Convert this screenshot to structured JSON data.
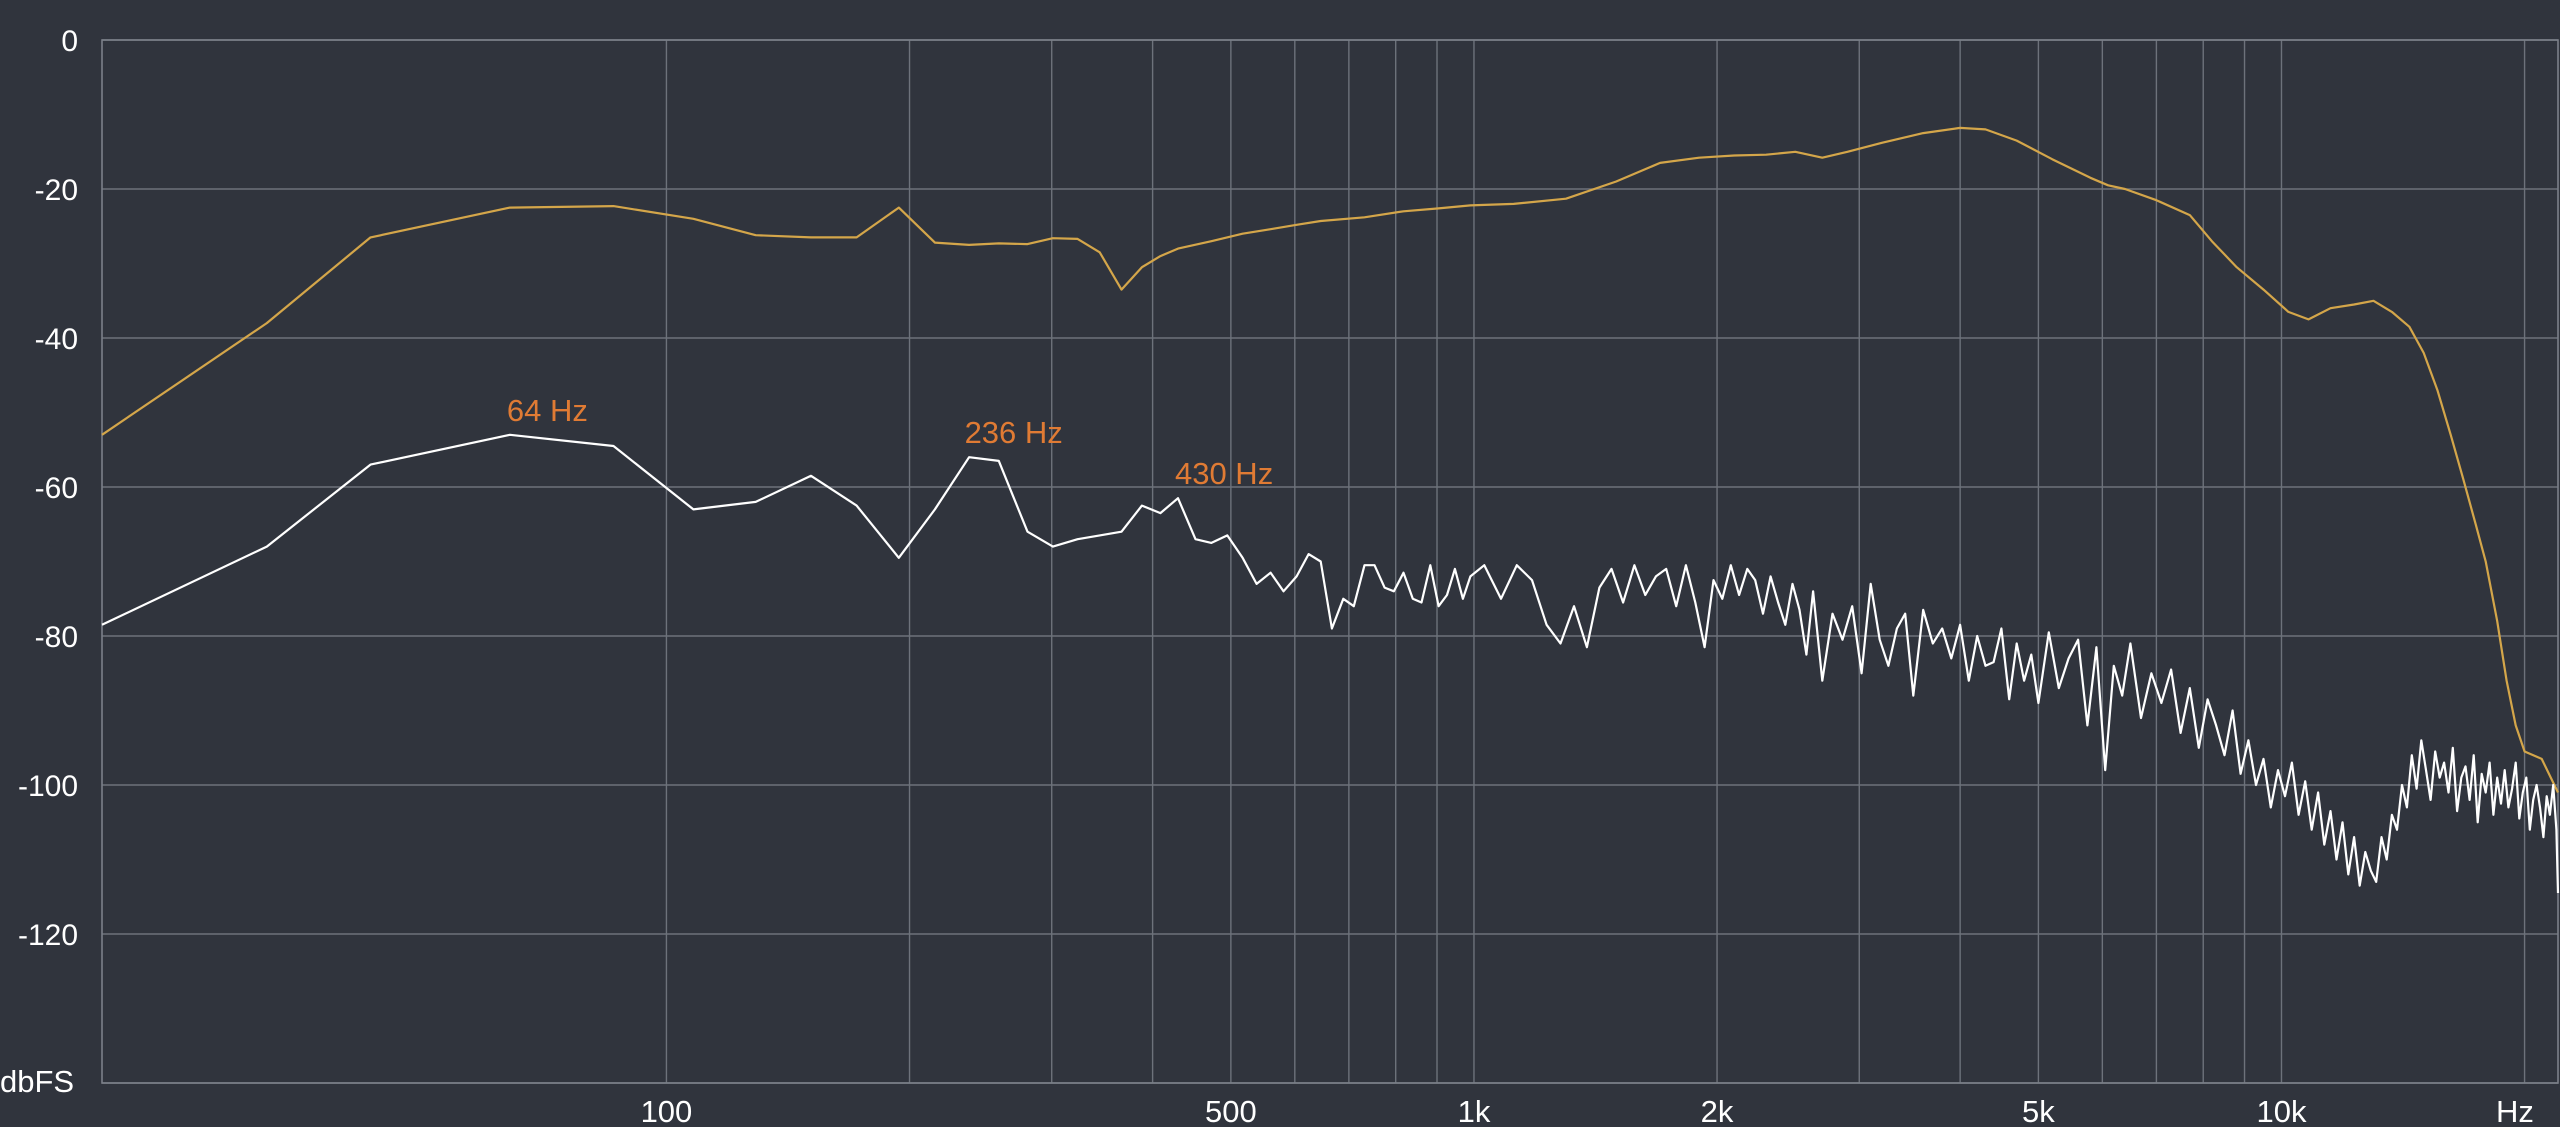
{
  "chart_data": {
    "type": "line",
    "title": "",
    "xlabel": "Hz",
    "ylabel": "dbFS",
    "x_scale": "log",
    "xlim": [
      20,
      22000
    ],
    "ylim": [
      -140,
      0
    ],
    "grid": true,
    "y_ticks": [
      0,
      -20,
      -40,
      -60,
      -80,
      -100,
      -120
    ],
    "y_tick_labels": [
      "0",
      "-20",
      "-40",
      "-60",
      "-80",
      "-100",
      "-120"
    ],
    "x_grid_values": [
      100,
      200,
      300,
      400,
      500,
      600,
      700,
      800,
      900,
      1000,
      2000,
      3000,
      4000,
      5000,
      6000,
      7000,
      8000,
      9000,
      10000,
      20000
    ],
    "x_tick_labels": [
      {
        "x": 100,
        "label": "100"
      },
      {
        "x": 500,
        "label": "500"
      },
      {
        "x": 1000,
        "label": "1k"
      },
      {
        "x": 2000,
        "label": "2k"
      },
      {
        "x": 5000,
        "label": "5k"
      },
      {
        "x": 10000,
        "label": "10k"
      }
    ],
    "series": [
      {
        "color": "#d4a64a",
        "x": [
          20,
          32,
          43,
          64,
          86,
          108,
          129,
          151,
          172,
          194,
          215,
          237,
          258,
          280,
          301,
          323,
          344,
          366,
          388,
          409,
          430,
          473,
          517,
          560,
          603,
          646,
          732,
          818,
          904,
          990,
          1120,
          1300,
          1500,
          1700,
          1900,
          2100,
          2300,
          2500,
          2700,
          2900,
          3200,
          3600,
          4000,
          4300,
          4700,
          5200,
          5800,
          6100,
          6400,
          7000,
          7700,
          8200,
          8800,
          9500,
          10200,
          10800,
          11500,
          12300,
          13000,
          13700,
          14400,
          15000,
          15600,
          16200,
          16800,
          17400,
          17900,
          18500,
          19000,
          19500,
          20000,
          21000,
          22000
        ],
        "y": [
          -53,
          -38,
          -26.5,
          -22.5,
          -22.3,
          -24,
          -26.2,
          -26.5,
          -26.5,
          -22.5,
          -27.2,
          -27.5,
          -27.3,
          -27.4,
          -26.6,
          -26.7,
          -28.5,
          -33.5,
          -30.5,
          -29.0,
          -28.0,
          -27.0,
          -26.0,
          -25.4,
          -24.8,
          -24.3,
          -23.8,
          -23.0,
          -22.6,
          -22.2,
          -22.0,
          -21.3,
          -19.0,
          -16.5,
          -15.8,
          -15.5,
          -15.4,
          -15.0,
          -15.8,
          -15.0,
          -13.8,
          -12.5,
          -11.8,
          -12.0,
          -13.5,
          -16.0,
          -18.5,
          -19.5,
          -20.0,
          -21.5,
          -23.5,
          -27.0,
          -30.5,
          -33.5,
          -36.5,
          -37.5,
          -36.0,
          -35.5,
          -35.0,
          -36.5,
          -38.5,
          -42.0,
          -47.0,
          -53.0,
          -59.0,
          -65.0,
          -70.0,
          -78.0,
          -86.0,
          -92.0,
          -95.5,
          -96.5,
          -101.0
        ]
      },
      {
        "color": "#ffffff",
        "x": [
          20,
          32,
          43,
          64,
          86,
          108,
          129,
          151,
          172,
          194,
          215,
          237,
          258,
          280,
          301,
          323,
          344,
          366,
          388,
          409,
          430,
          452,
          473,
          495,
          517,
          538,
          560,
          581,
          603,
          624,
          646,
          667,
          689,
          710,
          732,
          753,
          775,
          796,
          818,
          840,
          861,
          883,
          904,
          926,
          947,
          969,
          990,
          1030,
          1080,
          1130,
          1180,
          1230,
          1280,
          1330,
          1380,
          1430,
          1480,
          1530,
          1580,
          1630,
          1680,
          1730,
          1780,
          1830,
          1880,
          1930,
          1980,
          2030,
          2080,
          2130,
          2180,
          2230,
          2280,
          2330,
          2380,
          2430,
          2480,
          2530,
          2580,
          2630,
          2700,
          2780,
          2860,
          2940,
          3020,
          3100,
          3180,
          3260,
          3340,
          3420,
          3500,
          3600,
          3700,
          3800,
          3900,
          4000,
          4100,
          4200,
          4300,
          4400,
          4500,
          4600,
          4700,
          4800,
          4900,
          5000,
          5150,
          5300,
          5450,
          5600,
          5750,
          5900,
          6050,
          6200,
          6350,
          6500,
          6700,
          6900,
          7100,
          7300,
          7500,
          7700,
          7900,
          8100,
          8300,
          8500,
          8700,
          8900,
          9100,
          9300,
          9500,
          9700,
          9900,
          10100,
          10300,
          10500,
          10700,
          10900,
          11100,
          11300,
          11500,
          11700,
          11900,
          12100,
          12300,
          12500,
          12700,
          12900,
          13100,
          13300,
          13500,
          13700,
          13900,
          14100,
          14300,
          14500,
          14700,
          14900,
          15100,
          15300,
          15500,
          15700,
          15900,
          16100,
          16300,
          16500,
          16700,
          16900,
          17100,
          17300,
          17500,
          17700,
          17900,
          18100,
          18300,
          18500,
          18700,
          18900,
          19100,
          19300,
          19500,
          19700,
          19900,
          20100,
          20300,
          20500,
          20700,
          20900,
          21100,
          21300,
          21500,
          21700,
          21900,
          22000
        ],
        "y": [
          -78.5,
          -68,
          -57,
          -53,
          -54.5,
          -63,
          -62,
          -58.5,
          -62.5,
          -69.5,
          -63,
          -56,
          -56.5,
          -66,
          -68,
          -67,
          -66.5,
          -66,
          -62.5,
          -63.5,
          -61.5,
          -67,
          -67.5,
          -66.5,
          -69.5,
          -73,
          -71.5,
          -74,
          -72,
          -69,
          -70,
          -79,
          -75,
          -76,
          -70.5,
          -70.5,
          -73.5,
          -74,
          -71.5,
          -75,
          -75.5,
          -70.5,
          -76,
          -74.5,
          -71,
          -75,
          -72,
          -70.5,
          -75,
          -70.5,
          -72.5,
          -78.5,
          -81,
          -76,
          -81.5,
          -73.5,
          -71,
          -75.5,
          -70.5,
          -74.5,
          -72,
          -71,
          -76,
          -70.5,
          -75.5,
          -81.5,
          -72.5,
          -75,
          -70.5,
          -74.5,
          -71,
          -72.5,
          -77,
          -72,
          -75.5,
          -78.5,
          -73,
          -76.5,
          -82.5,
          -74,
          -86,
          -77,
          -80.5,
          -76,
          -85,
          -73,
          -80.5,
          -84,
          -79,
          -77,
          -88,
          -76.5,
          -81,
          -79,
          -83,
          -78.5,
          -86,
          -80,
          -84,
          -83.5,
          -79,
          -88.5,
          -81,
          -86,
          -82.5,
          -89,
          -79.5,
          -87,
          -83,
          -80.5,
          -92,
          -81.5,
          -98,
          -84,
          -88,
          -81,
          -91,
          -85,
          -89,
          -84.5,
          -93,
          -87,
          -95,
          -88.5,
          -92,
          -96,
          -90,
          -98.5,
          -94,
          -100,
          -96.5,
          -103,
          -98,
          -101.5,
          -97,
          -104,
          -99.5,
          -106,
          -101,
          -108,
          -103.5,
          -110,
          -105,
          -112,
          -107,
          -113.5,
          -109,
          -111.5,
          -113,
          -107,
          -110,
          -104,
          -106,
          -100,
          -103,
          -96,
          -100.5,
          -94,
          -98,
          -102,
          -95.5,
          -99,
          -97,
          -101,
          -95,
          -103.5,
          -99,
          -97.5,
          -102,
          -96,
          -105,
          -98.5,
          -101,
          -97,
          -104,
          -99,
          -102.5,
          -98,
          -103,
          -100.5,
          -97,
          -104.5,
          -101,
          -99,
          -106,
          -102,
          -100,
          -103,
          -107,
          -101.5,
          -104,
          -100,
          -106,
          -114.5
        ]
      }
    ],
    "annotations": [
      {
        "x": 64,
        "y": -53,
        "label": "64 Hz"
      },
      {
        "x": 236,
        "y": -56,
        "label": "236 Hz"
      },
      {
        "x": 430,
        "y": -61.5,
        "label": "430 Hz"
      }
    ]
  },
  "colors": {
    "background": "#30343d",
    "grid": "#6d727b",
    "peak_label": "#e07b34"
  }
}
